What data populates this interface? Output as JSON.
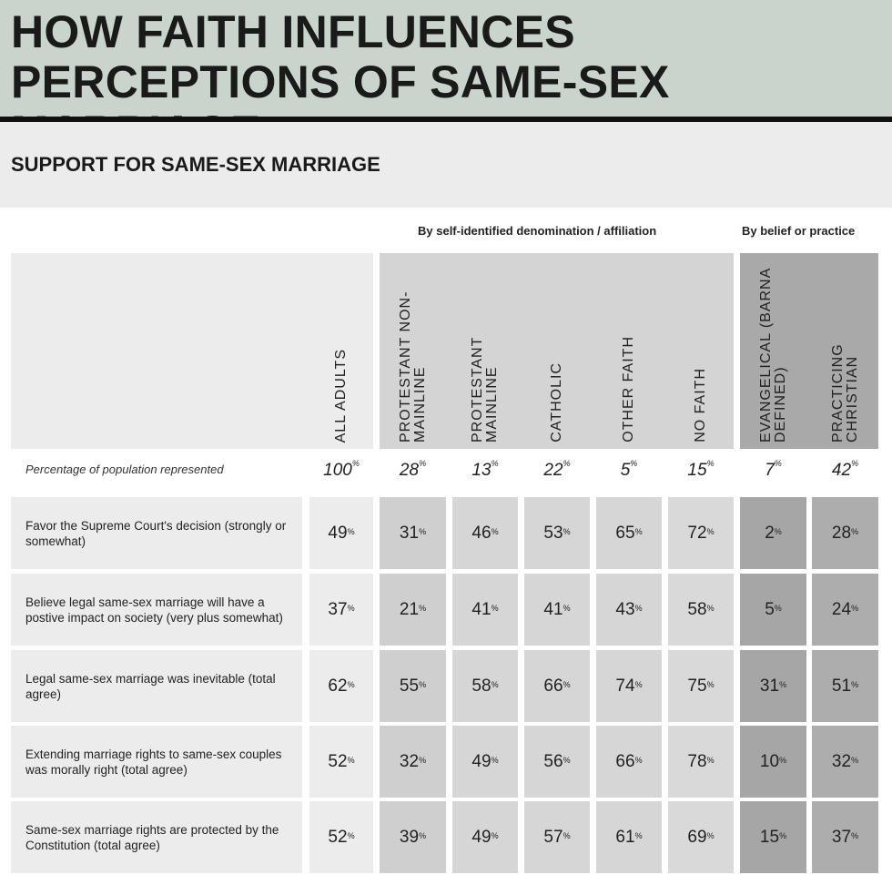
{
  "title_lines": [
    "HOW FAITH INFLUENCES",
    "PERCEPTIONS OF SAME-SEX MARRIAGE"
  ],
  "subtitle": "SUPPORT FOR SAME-SEX MARRIAGE",
  "colors": {
    "title_band": "#c9d5cc",
    "light": "#ececec",
    "denomination": "#d4d4d4",
    "belief": "#a9a9a9"
  },
  "chart_data": {
    "type": "table",
    "title": "SUPPORT FOR SAME-SEX MARRIAGE",
    "groups": [
      {
        "label": "By self-identified denomination / affiliation",
        "columns": [
          "PROTESTANT NON-MAINLINE",
          "PROTESTANT MAINLINE",
          "CATHOLIC",
          "OTHER FAITH",
          "NO FAITH"
        ]
      },
      {
        "label": "By belief or practice",
        "columns": [
          "EVANGELICAL (BARNA DEFINED)",
          "PRACTICING CHRISTIAN"
        ]
      }
    ],
    "columns": [
      "ALL ADULTS",
      "PROTESTANT NON-MAINLINE",
      "PROTESTANT MAINLINE",
      "CATHOLIC",
      "OTHER FAITH",
      "NO FAITH",
      "EVANGELICAL (BARNA DEFINED)",
      "PRACTICING CHRISTIAN"
    ],
    "population_label": "Percentage of population represented",
    "population": [
      100,
      28,
      13,
      22,
      5,
      15,
      7,
      42
    ],
    "unit": "%",
    "rows": [
      {
        "label": "Favor the Supreme Court's decision (strongly or somewhat)",
        "values": [
          49,
          31,
          46,
          53,
          65,
          72,
          2,
          28
        ]
      },
      {
        "label": "Believe legal same-sex marriage will have a postive impact on society (very plus somewhat)",
        "values": [
          37,
          21,
          41,
          41,
          43,
          58,
          5,
          24
        ]
      },
      {
        "label": "Legal same-sex marriage was inevitable (total agree)",
        "values": [
          62,
          55,
          58,
          66,
          74,
          75,
          31,
          51
        ]
      },
      {
        "label": "Extending marriage rights to same-sex couples was morally right (total agree)",
        "values": [
          52,
          32,
          49,
          56,
          66,
          78,
          10,
          32
        ]
      },
      {
        "label": "Same-sex marriage rights are protected by the Constitution (total agree)",
        "values": [
          52,
          39,
          49,
          57,
          61,
          69,
          15,
          37
        ]
      }
    ]
  }
}
